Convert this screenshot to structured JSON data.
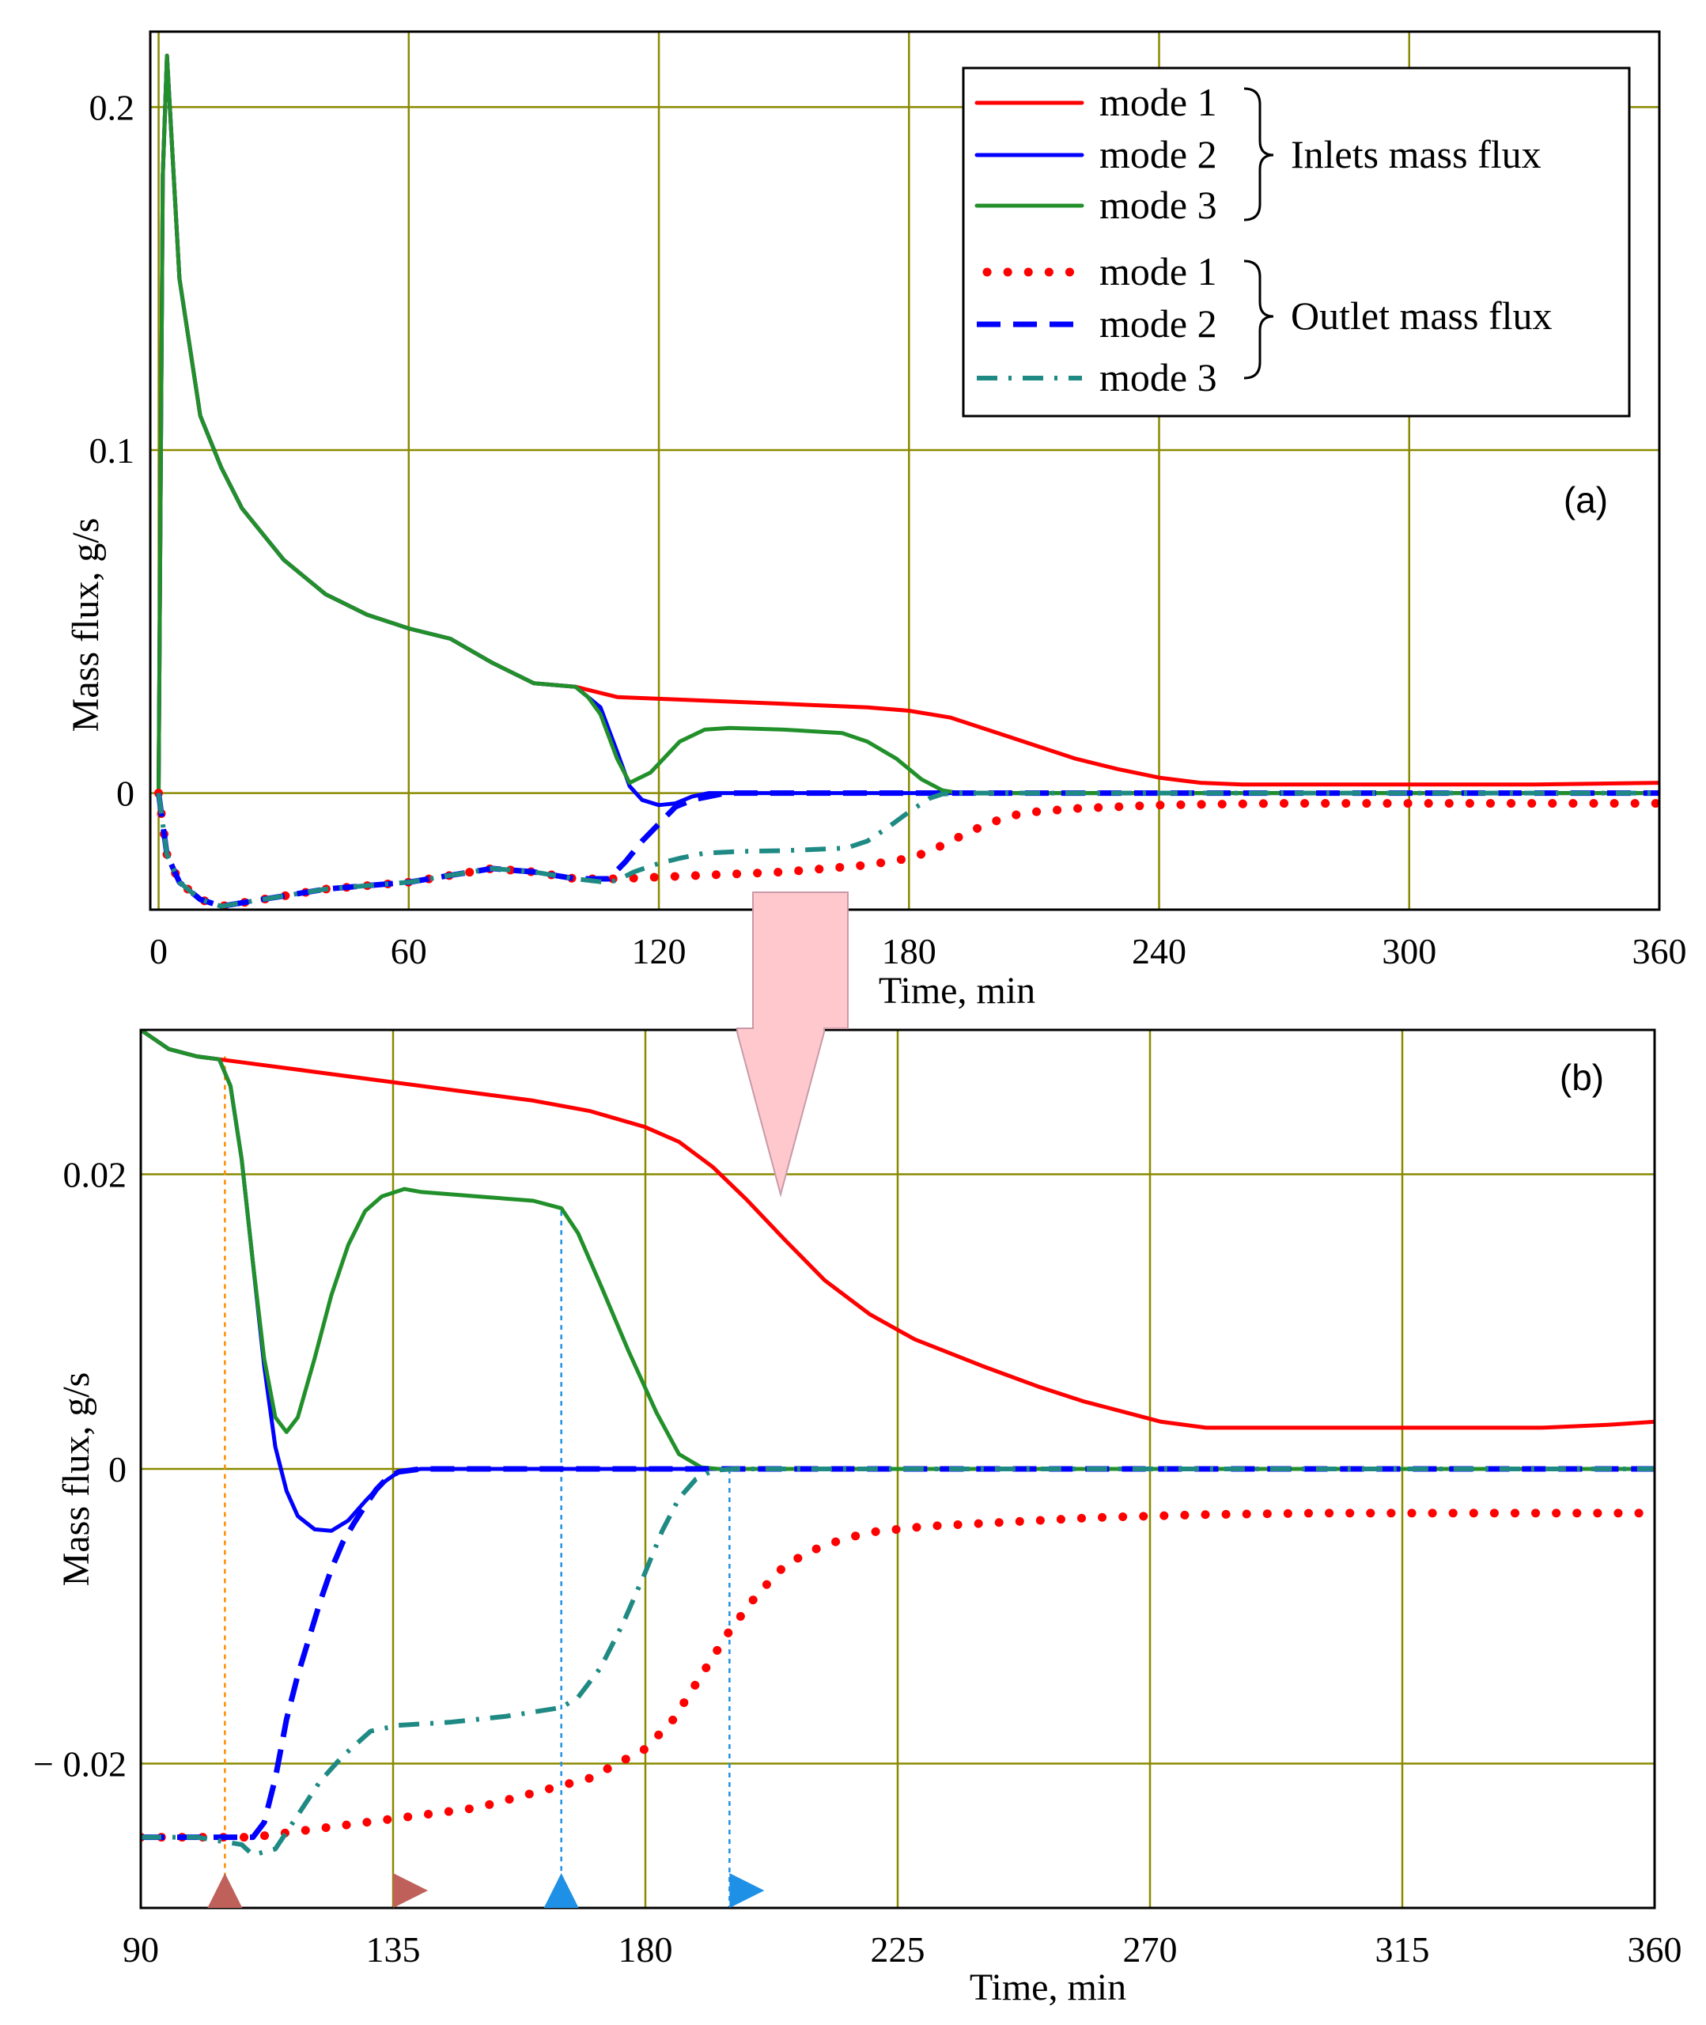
{
  "colors": {
    "mode1": "#ff0000",
    "mode2": "#0000ff",
    "mode3": "#22902a",
    "mode3_outlet": "#1f8a84",
    "grid": "#8a8a00",
    "arrow_fill": "#ffc8cc",
    "marker_brown": "#c0605a",
    "marker_blue": "#1e90e6",
    "guide_orange": "#ff8c00",
    "guide_blue": "#1e90e6"
  },
  "legend": {
    "entries": [
      {
        "label": "mode 1",
        "style": "solid",
        "color_key": "mode1"
      },
      {
        "label": "mode 2",
        "style": "solid",
        "color_key": "mode2"
      },
      {
        "label": "mode 3",
        "style": "solid",
        "color_key": "mode3"
      },
      {
        "label": "mode 1",
        "style": "dotted",
        "color_key": "mode1"
      },
      {
        "label": "mode 2",
        "style": "dashed",
        "color_key": "mode2"
      },
      {
        "label": "mode 3",
        "style": "dashdot",
        "color_key": "mode3_outlet"
      }
    ],
    "group_inlet": "Inlets mass flux",
    "group_outlet": "Outlet mass flux"
  },
  "chart_data": [
    {
      "type": "line",
      "panel": "(a)",
      "xlabel": "Time, min",
      "ylabel": "Mass flux, g/s",
      "xlim": [
        -2,
        360
      ],
      "ylim": [
        -0.034,
        0.222
      ],
      "x_ticks": [
        "0",
        "60",
        "120",
        "180",
        "240",
        "300",
        "360"
      ],
      "x_tick_values": [
        0,
        60,
        120,
        180,
        240,
        300,
        360
      ],
      "y_ticks": [
        "0",
        "0.1",
        "0.2"
      ],
      "y_tick_values": [
        0,
        0.1,
        0.2
      ],
      "grid": true,
      "series": [
        {
          "name": "mode 1 inlet",
          "style": "solid",
          "color_key": "mode1",
          "x": [
            0,
            1,
            2,
            5,
            10,
            15,
            20,
            30,
            40,
            50,
            60,
            70,
            80,
            90,
            100,
            110,
            130,
            150,
            170,
            180,
            190,
            200,
            210,
            220,
            230,
            240,
            250,
            260,
            270,
            300,
            330,
            360
          ],
          "y": [
            0,
            0.18,
            0.215,
            0.15,
            0.11,
            0.095,
            0.083,
            0.068,
            0.058,
            0.052,
            0.048,
            0.045,
            0.038,
            0.032,
            0.031,
            0.028,
            0.027,
            0.026,
            0.025,
            0.024,
            0.022,
            0.018,
            0.014,
            0.01,
            0.007,
            0.0045,
            0.003,
            0.0025,
            0.0025,
            0.0025,
            0.0025,
            0.003
          ]
        },
        {
          "name": "mode 2 inlet",
          "style": "solid",
          "color_key": "mode2",
          "x": [
            0,
            1,
            2,
            5,
            10,
            15,
            20,
            30,
            40,
            50,
            60,
            70,
            80,
            90,
            100,
            103,
            106,
            110,
            113,
            116,
            120,
            124,
            128,
            132,
            140,
            160,
            200,
            260,
            360
          ],
          "y": [
            0,
            0.18,
            0.215,
            0.15,
            0.11,
            0.095,
            0.083,
            0.068,
            0.058,
            0.052,
            0.048,
            0.045,
            0.038,
            0.032,
            0.031,
            0.028,
            0.025,
            0.012,
            0.002,
            -0.002,
            -0.0035,
            -0.003,
            -0.001,
            0.0,
            0.0,
            0.0,
            0.0,
            0.0,
            0.0
          ]
        },
        {
          "name": "mode 3 inlet",
          "style": "solid",
          "color_key": "mode3",
          "x": [
            0,
            1,
            2,
            5,
            10,
            15,
            20,
            30,
            40,
            50,
            60,
            70,
            80,
            90,
            100,
            103,
            106,
            110,
            113,
            118,
            125,
            131,
            137,
            150,
            164,
            170,
            177,
            183,
            188,
            192,
            200,
            260,
            360
          ],
          "y": [
            0,
            0.18,
            0.215,
            0.15,
            0.11,
            0.095,
            0.083,
            0.068,
            0.058,
            0.052,
            0.048,
            0.045,
            0.038,
            0.032,
            0.031,
            0.028,
            0.023,
            0.01,
            0.003,
            0.006,
            0.015,
            0.0185,
            0.019,
            0.0185,
            0.0175,
            0.015,
            0.01,
            0.004,
            0.0008,
            0.0,
            0.0,
            0.0,
            0.0
          ]
        },
        {
          "name": "mode 1 outlet",
          "style": "dotted",
          "color_key": "mode1",
          "x": [
            0,
            2,
            5,
            10,
            15,
            20,
            30,
            40,
            50,
            60,
            70,
            80,
            90,
            100,
            110,
            120,
            130,
            140,
            150,
            160,
            170,
            180,
            185,
            190,
            195,
            200,
            205,
            210,
            220,
            230,
            240,
            250,
            270,
            300,
            330,
            360
          ],
          "y": [
            0,
            -0.018,
            -0.026,
            -0.031,
            -0.033,
            -0.032,
            -0.03,
            -0.028,
            -0.027,
            -0.026,
            -0.024,
            -0.022,
            -0.023,
            -0.025,
            -0.025,
            -0.0245,
            -0.024,
            -0.0235,
            -0.023,
            -0.022,
            -0.021,
            -0.019,
            -0.017,
            -0.014,
            -0.011,
            -0.0085,
            -0.0065,
            -0.0055,
            -0.0045,
            -0.004,
            -0.0035,
            -0.0033,
            -0.003,
            -0.003,
            -0.003,
            -0.003
          ]
        },
        {
          "name": "mode 2 outlet",
          "style": "dashed",
          "color_key": "mode2",
          "x": [
            0,
            2,
            5,
            10,
            15,
            20,
            30,
            40,
            50,
            60,
            70,
            80,
            90,
            100,
            105,
            108,
            112,
            116,
            120,
            124,
            128,
            132,
            136,
            140,
            160,
            200,
            260,
            360
          ],
          "y": [
            0,
            -0.018,
            -0.026,
            -0.031,
            -0.033,
            -0.032,
            -0.03,
            -0.028,
            -0.027,
            -0.026,
            -0.024,
            -0.022,
            -0.023,
            -0.025,
            -0.025,
            -0.025,
            -0.02,
            -0.014,
            -0.009,
            -0.004,
            -0.002,
            -0.001,
            0.0,
            0.0,
            0.0,
            0.0,
            0.0,
            0.0
          ]
        },
        {
          "name": "mode 3 outlet",
          "style": "dashdot",
          "color_key": "mode3_outlet",
          "x": [
            0,
            2,
            5,
            10,
            15,
            20,
            30,
            40,
            50,
            60,
            70,
            80,
            90,
            100,
            107,
            110,
            114,
            120,
            125,
            131,
            140,
            150,
            160,
            165,
            170,
            175,
            180,
            185,
            188,
            192,
            200,
            260,
            360
          ],
          "y": [
            0,
            -0.018,
            -0.026,
            -0.031,
            -0.033,
            -0.032,
            -0.03,
            -0.028,
            -0.027,
            -0.026,
            -0.024,
            -0.022,
            -0.023,
            -0.025,
            -0.026,
            -0.0255,
            -0.023,
            -0.0205,
            -0.019,
            -0.0175,
            -0.017,
            -0.0168,
            -0.0163,
            -0.016,
            -0.014,
            -0.01,
            -0.0055,
            -0.0015,
            -0.0003,
            0.0,
            0.0,
            0.0,
            0.0
          ]
        }
      ]
    },
    {
      "type": "line",
      "panel": "(b)",
      "xlabel": "Time, min",
      "ylabel": "Mass flux, g/s",
      "xlim": [
        90,
        360
      ],
      "ylim": [
        -0.0298,
        0.0298
      ],
      "x_ticks": [
        "90",
        "135",
        "180",
        "225",
        "270",
        "315",
        "360"
      ],
      "x_tick_values": [
        90,
        135,
        180,
        225,
        270,
        315,
        360
      ],
      "y_ticks": [
        "0.02",
        "0",
        "− 0.02"
      ],
      "y_tick_values": [
        0.02,
        0,
        -0.02
      ],
      "grid": true,
      "guides": [
        {
          "x": 105,
          "color_key": "guide_orange",
          "y_top": 0.028
        },
        {
          "x": 165,
          "color_key": "guide_blue",
          "y_top": 0.0175
        },
        {
          "x": 195,
          "color_key": "guide_blue",
          "y_top": 0.0
        }
      ],
      "markers": [
        {
          "x": 105,
          "shape": "up",
          "color_key": "marker_brown"
        },
        {
          "x": 135,
          "shape": "right",
          "color_key": "marker_brown"
        },
        {
          "x": 165,
          "shape": "up",
          "color_key": "marker_blue"
        },
        {
          "x": 195,
          "shape": "right",
          "color_key": "marker_blue"
        }
      ],
      "series": [
        {
          "name": "mode 1 inlet",
          "style": "solid",
          "color_key": "mode1",
          "x": [
            90,
            95,
            100,
            104,
            110,
            120,
            130,
            140,
            150,
            160,
            170,
            180,
            186,
            192,
            198,
            205,
            212,
            220,
            228,
            240,
            250,
            258,
            266,
            272,
            280,
            300,
            320,
            340,
            352,
            360
          ],
          "y": [
            0.0298,
            0.0285,
            0.028,
            0.0278,
            0.0275,
            0.027,
            0.0265,
            0.026,
            0.0255,
            0.025,
            0.0243,
            0.0232,
            0.0222,
            0.0205,
            0.0183,
            0.0155,
            0.0128,
            0.0105,
            0.0088,
            0.007,
            0.0056,
            0.0046,
            0.0038,
            0.0032,
            0.0028,
            0.0028,
            0.0028,
            0.0028,
            0.003,
            0.0032
          ]
        },
        {
          "name": "mode 2 inlet",
          "style": "solid",
          "color_key": "mode2",
          "x": [
            90,
            95,
            100,
            104,
            106,
            108,
            110,
            112,
            114,
            116,
            118,
            121,
            124,
            127,
            130,
            133,
            136,
            140,
            160,
            200,
            260,
            360
          ],
          "y": [
            0.0298,
            0.0285,
            0.028,
            0.0278,
            0.026,
            0.021,
            0.014,
            0.007,
            0.0015,
            -0.0015,
            -0.0032,
            -0.0041,
            -0.0042,
            -0.0035,
            -0.0022,
            -0.001,
            -0.0002,
            0.0,
            0.0,
            0.0,
            0.0,
            0.0
          ]
        },
        {
          "name": "mode 3 inlet",
          "style": "solid",
          "color_key": "mode3",
          "x": [
            90,
            95,
            100,
            104,
            106,
            108,
            110,
            112,
            114,
            116,
            118,
            121,
            124,
            127,
            130,
            133,
            137,
            140,
            150,
            160,
            165,
            168,
            172,
            177,
            182,
            186,
            190,
            193,
            198,
            260,
            360
          ],
          "y": [
            0.0298,
            0.0285,
            0.028,
            0.0278,
            0.026,
            0.021,
            0.014,
            0.0075,
            0.0035,
            0.0025,
            0.0035,
            0.0075,
            0.0118,
            0.0152,
            0.0175,
            0.0185,
            0.019,
            0.0188,
            0.0185,
            0.0182,
            0.0177,
            0.016,
            0.0125,
            0.008,
            0.0038,
            0.001,
            0.0001,
            0.0,
            0.0,
            0.0,
            0.0
          ]
        },
        {
          "name": "mode 1 outlet",
          "style": "dotted",
          "color_key": "mode1",
          "x": [
            90,
            100,
            110,
            120,
            130,
            140,
            150,
            160,
            170,
            180,
            185,
            190,
            195,
            200,
            205,
            210,
            215,
            220,
            230,
            240,
            250,
            260,
            270,
            280,
            300,
            320,
            340,
            360
          ],
          "y": [
            -0.025,
            -0.025,
            -0.025,
            -0.0245,
            -0.024,
            -0.0235,
            -0.023,
            -0.022,
            -0.021,
            -0.019,
            -0.017,
            -0.014,
            -0.011,
            -0.0085,
            -0.0065,
            -0.0055,
            -0.0048,
            -0.0043,
            -0.0039,
            -0.0037,
            -0.0035,
            -0.0033,
            -0.0032,
            -0.0031,
            -0.003,
            -0.003,
            -0.003,
            -0.003
          ]
        },
        {
          "name": "mode 2 outlet",
          "style": "dashed",
          "color_key": "mode2",
          "x": [
            90,
            100,
            110,
            112,
            114,
            116,
            118,
            120,
            122,
            124,
            126,
            128,
            130,
            132,
            134,
            136,
            140,
            160,
            200,
            260,
            360
          ],
          "y": [
            -0.025,
            -0.025,
            -0.025,
            -0.024,
            -0.021,
            -0.017,
            -0.014,
            -0.0115,
            -0.009,
            -0.0068,
            -0.005,
            -0.0037,
            -0.0025,
            -0.0014,
            -0.0006,
            -0.0002,
            0.0,
            0.0,
            0.0,
            0.0,
            0.0
          ]
        },
        {
          "name": "mode 3 outlet",
          "style": "dashdot",
          "color_key": "mode3_outlet",
          "x": [
            90,
            100,
            108,
            110,
            114,
            118,
            122,
            126,
            131,
            136,
            145,
            155,
            165,
            168,
            172,
            176,
            180,
            183,
            186,
            189,
            192,
            196,
            200,
            260,
            360
          ],
          "y": [
            -0.025,
            -0.025,
            -0.0255,
            -0.0262,
            -0.0258,
            -0.0235,
            -0.0212,
            -0.0195,
            -0.0178,
            -0.0174,
            -0.0172,
            -0.0168,
            -0.0162,
            -0.0155,
            -0.0135,
            -0.0105,
            -0.007,
            -0.0042,
            -0.002,
            -0.0007,
            -0.0001,
            0.0,
            0.0,
            0.0,
            0.0
          ]
        }
      ]
    }
  ]
}
